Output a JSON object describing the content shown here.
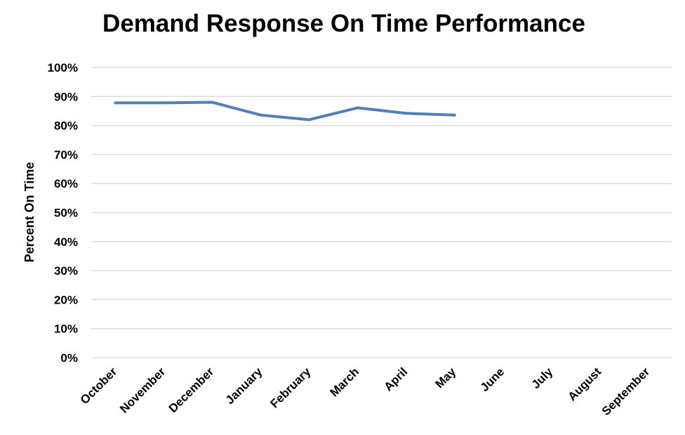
{
  "chart_data": {
    "type": "line",
    "title": "Demand Response On Time Performance",
    "xlabel": "",
    "ylabel": "Percent On Time",
    "categories": [
      "October",
      "November",
      "December",
      "January",
      "February",
      "March",
      "April",
      "May",
      "June",
      "July",
      "August",
      "September"
    ],
    "y_ticks": [
      "0%",
      "10%",
      "20%",
      "30%",
      "40%",
      "50%",
      "60%",
      "70%",
      "80%",
      "90%",
      "100%"
    ],
    "ylim": [
      0,
      100
    ],
    "grid": true,
    "series": [
      {
        "values": [
          87.8,
          87.8,
          88.0,
          83.6,
          82.0,
          86.1,
          84.2,
          83.6,
          null,
          null,
          null,
          null
        ],
        "color": "#4f7fbc"
      }
    ]
  }
}
